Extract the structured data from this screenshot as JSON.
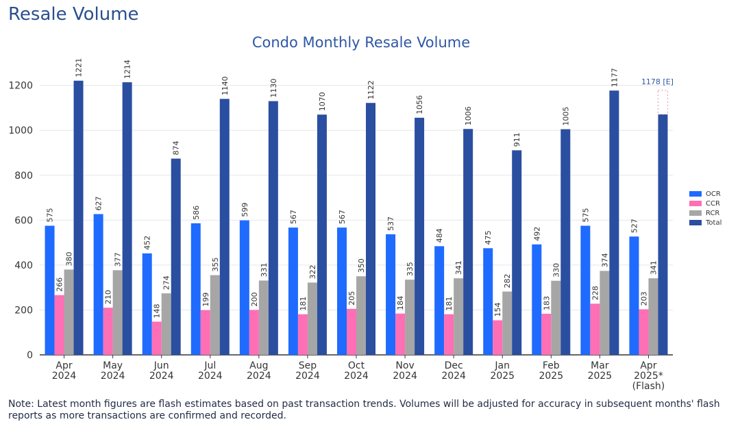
{
  "page": {
    "title": "Resale Volume",
    "note": "Note: Latest month figures are flash estimates based on past transaction trends. Volumes will be adjusted for accuracy in subsequent months' flash reports as more transactions are confirmed and recorded."
  },
  "chart_data": {
    "type": "bar",
    "title": "Condo Monthly Resale Volume",
    "xlabel": "",
    "ylabel": "",
    "ylim": [
      0,
      1260
    ],
    "yticks": [
      0,
      200,
      400,
      600,
      800,
      1000,
      1200
    ],
    "grid": true,
    "legend_position": "right",
    "categories": [
      [
        "Apr",
        "2024"
      ],
      [
        "May",
        "2024"
      ],
      [
        "Jun",
        "2024"
      ],
      [
        "Jul",
        "2024"
      ],
      [
        "Aug",
        "2024"
      ],
      [
        "Sep",
        "2024"
      ],
      [
        "Oct",
        "2024"
      ],
      [
        "Nov",
        "2024"
      ],
      [
        "Dec",
        "2024"
      ],
      [
        "Jan",
        "2025"
      ],
      [
        "Feb",
        "2025"
      ],
      [
        "Mar",
        "2025"
      ],
      [
        "Apr",
        "2025*",
        "(Flash)"
      ]
    ],
    "series": [
      {
        "name": "OCR",
        "color": "#1f6bff",
        "values": [
          575,
          627,
          452,
          586,
          599,
          567,
          567,
          537,
          484,
          475,
          492,
          575,
          527
        ]
      },
      {
        "name": "CCR",
        "color": "#ff6fb5",
        "values": [
          266,
          210,
          148,
          199,
          200,
          181,
          205,
          184,
          181,
          154,
          183,
          228,
          203
        ]
      },
      {
        "name": "RCR",
        "color": "#a6a6a6",
        "values": [
          380,
          377,
          274,
          355,
          331,
          322,
          350,
          335,
          341,
          282,
          330,
          374,
          341
        ]
      },
      {
        "name": "Total",
        "color": "#2a4ea0",
        "values": [
          1221,
          1214,
          874,
          1140,
          1130,
          1070,
          1122,
          1056,
          1006,
          911,
          1005,
          1177,
          1071
        ]
      }
    ],
    "estimate": {
      "category_index": 12,
      "value": 1178,
      "label": "1178 [E]",
      "color": "#2f57a6"
    },
    "hidden_labels": [
      {
        "series": "Total",
        "category_index": 12
      }
    ]
  }
}
